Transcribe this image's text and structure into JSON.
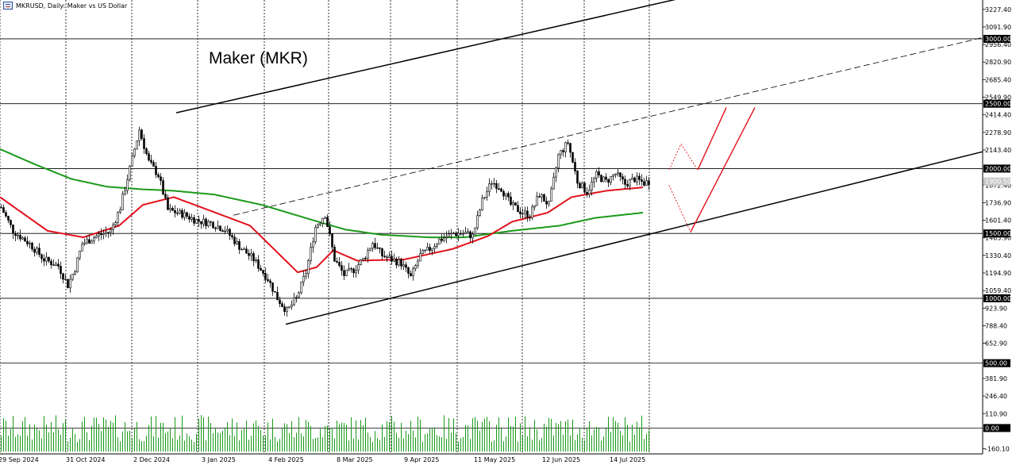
{
  "header": {
    "symbol_info": "MKRUSD, Daily:  Maker vs US Dollar"
  },
  "chart_data": {
    "type": "candlestick",
    "title": "Maker (MKR)",
    "symbol": "MKRUSD",
    "timeframe": "Daily",
    "description": "Maker vs US Dollar",
    "ylim": [
      -230,
      3330
    ],
    "x_tick_labels": [
      "29 Sep 2024",
      "31 Oct 2024",
      "2 Dec 2024",
      "3 Jan 2025",
      "4 Feb 2025",
      "8 Mar 2025",
      "9 Apr 2025",
      "11 May 2025",
      "12 Jun 2025",
      "14 Jul 2025"
    ],
    "y_tick_labels": [
      "3227.40",
      "3091.90",
      "2956.40",
      "2820.90",
      "2685.40",
      "2549.90",
      "2414.40",
      "2278.90",
      "2143.40",
      "1872.40",
      "1736.90",
      "1601.40",
      "1465.90",
      "1330.40",
      "1194.90",
      "1059.40",
      "923.90",
      "788.40",
      "652.90",
      "381.90",
      "246.40",
      "110.90",
      "-160.10"
    ],
    "horizontal_levels": [
      "3000.00",
      "2500.00",
      "2000.00",
      "1500.00",
      "1000.00",
      "500.00",
      "0.00"
    ],
    "current_price": "1900.50",
    "grid": "vertical dotted",
    "price_anchors": [
      {
        "day": 0,
        "price": 1700
      },
      {
        "day": 5,
        "price": 1520
      },
      {
        "day": 12,
        "price": 1420
      },
      {
        "day": 18,
        "price": 1300
      },
      {
        "day": 24,
        "price": 1250
      },
      {
        "day": 28,
        "price": 1100
      },
      {
        "day": 31,
        "price": 1230
      },
      {
        "day": 34,
        "price": 1420
      },
      {
        "day": 40,
        "price": 1480
      },
      {
        "day": 46,
        "price": 1520
      },
      {
        "day": 50,
        "price": 1700
      },
      {
        "day": 54,
        "price": 2000
      },
      {
        "day": 58,
        "price": 2300
      },
      {
        "day": 62,
        "price": 2050
      },
      {
        "day": 66,
        "price": 1950
      },
      {
        "day": 70,
        "price": 1680
      },
      {
        "day": 76,
        "price": 1650
      },
      {
        "day": 82,
        "price": 1600
      },
      {
        "day": 88,
        "price": 1580
      },
      {
        "day": 94,
        "price": 1530
      },
      {
        "day": 100,
        "price": 1400
      },
      {
        "day": 106,
        "price": 1300
      },
      {
        "day": 112,
        "price": 1150
      },
      {
        "day": 116,
        "price": 1000
      },
      {
        "day": 120,
        "price": 900
      },
      {
        "day": 124,
        "price": 1000
      },
      {
        "day": 128,
        "price": 1200
      },
      {
        "day": 132,
        "price": 1550
      },
      {
        "day": 136,
        "price": 1650
      },
      {
        "day": 140,
        "price": 1300
      },
      {
        "day": 144,
        "price": 1180
      },
      {
        "day": 148,
        "price": 1220
      },
      {
        "day": 152,
        "price": 1300
      },
      {
        "day": 156,
        "price": 1430
      },
      {
        "day": 160,
        "price": 1330
      },
      {
        "day": 164,
        "price": 1300
      },
      {
        "day": 168,
        "price": 1270
      },
      {
        "day": 172,
        "price": 1160
      },
      {
        "day": 176,
        "price": 1330
      },
      {
        "day": 180,
        "price": 1380
      },
      {
        "day": 184,
        "price": 1450
      },
      {
        "day": 190,
        "price": 1500
      },
      {
        "day": 195,
        "price": 1500
      },
      {
        "day": 198,
        "price": 1480
      },
      {
        "day": 202,
        "price": 1750
      },
      {
        "day": 206,
        "price": 1900
      },
      {
        "day": 210,
        "price": 1850
      },
      {
        "day": 214,
        "price": 1720
      },
      {
        "day": 218,
        "price": 1670
      },
      {
        "day": 222,
        "price": 1640
      },
      {
        "day": 226,
        "price": 1800
      },
      {
        "day": 230,
        "price": 1720
      },
      {
        "day": 234,
        "price": 2100
      },
      {
        "day": 238,
        "price": 2200
      },
      {
        "day": 242,
        "price": 1900
      },
      {
        "day": 246,
        "price": 1820
      },
      {
        "day": 250,
        "price": 1950
      },
      {
        "day": 254,
        "price": 1900
      },
      {
        "day": 258,
        "price": 1960
      },
      {
        "day": 262,
        "price": 1880
      },
      {
        "day": 266,
        "price": 1920
      },
      {
        "day": 270,
        "price": 1890
      },
      {
        "day": 272,
        "price": 1900
      }
    ],
    "ma_fast_anchors": [
      {
        "day": 0,
        "price": 1780
      },
      {
        "day": 20,
        "price": 1520
      },
      {
        "day": 35,
        "price": 1470
      },
      {
        "day": 50,
        "price": 1560
      },
      {
        "day": 60,
        "price": 1720
      },
      {
        "day": 73,
        "price": 1780
      },
      {
        "day": 92,
        "price": 1650
      },
      {
        "day": 105,
        "price": 1560
      },
      {
        "day": 115,
        "price": 1380
      },
      {
        "day": 125,
        "price": 1200
      },
      {
        "day": 133,
        "price": 1240
      },
      {
        "day": 140,
        "price": 1370
      },
      {
        "day": 150,
        "price": 1290
      },
      {
        "day": 170,
        "price": 1300
      },
      {
        "day": 190,
        "price": 1380
      },
      {
        "day": 205,
        "price": 1480
      },
      {
        "day": 215,
        "price": 1590
      },
      {
        "day": 230,
        "price": 1660
      },
      {
        "day": 240,
        "price": 1780
      },
      {
        "day": 255,
        "price": 1830
      },
      {
        "day": 270,
        "price": 1855
      }
    ],
    "ma_slow_anchors": [
      {
        "day": 0,
        "price": 2150
      },
      {
        "day": 15,
        "price": 2030
      },
      {
        "day": 30,
        "price": 1920
      },
      {
        "day": 45,
        "price": 1860
      },
      {
        "day": 60,
        "price": 1840
      },
      {
        "day": 72,
        "price": 1830
      },
      {
        "day": 90,
        "price": 1800
      },
      {
        "day": 110,
        "price": 1720
      },
      {
        "day": 130,
        "price": 1610
      },
      {
        "day": 145,
        "price": 1530
      },
      {
        "day": 160,
        "price": 1490
      },
      {
        "day": 180,
        "price": 1470
      },
      {
        "day": 195,
        "price": 1470
      },
      {
        "day": 215,
        "price": 1520
      },
      {
        "day": 235,
        "price": 1560
      },
      {
        "day": 250,
        "price": 1620
      },
      {
        "day": 270,
        "price": 1660
      }
    ],
    "trendlines": [
      {
        "style": "solid",
        "from": {
          "day": 74,
          "price": 2430
        },
        "to": {
          "day": 290,
          "price": 3330
        }
      },
      {
        "style": "solid",
        "from": {
          "day": 120,
          "price": 800
        },
        "to": {
          "day": 440,
          "price": 2130
        }
      },
      {
        "style": "dashed",
        "from": {
          "day": 98,
          "price": 1640
        },
        "to": {
          "day": 440,
          "price": 3010
        }
      }
    ],
    "projections": [
      {
        "style": "dotted",
        "points": [
          {
            "day": 281,
            "price": 1990
          },
          {
            "day": 286,
            "price": 2190
          },
          {
            "day": 293,
            "price": 1990
          }
        ]
      },
      {
        "style": "solid",
        "points": [
          {
            "day": 293,
            "price": 1990
          },
          {
            "day": 305,
            "price": 2470
          }
        ]
      },
      {
        "style": "dotted",
        "points": [
          {
            "day": 281,
            "price": 1870
          },
          {
            "day": 290,
            "price": 1510
          }
        ]
      },
      {
        "style": "solid",
        "points": [
          {
            "day": 290,
            "price": 1510
          },
          {
            "day": 317,
            "price": 2470
          }
        ]
      }
    ]
  },
  "colors": {
    "candle": "#000000",
    "ma_fast": "#e3111c",
    "ma_slow": "#1a9a1a",
    "volume": "#1a9a1a",
    "projection": "#e3111c",
    "grid": "#000000",
    "level_label_bg": "#000000",
    "level_label_text": "#ffffff",
    "current_label_bg": "#c8c8c8"
  }
}
